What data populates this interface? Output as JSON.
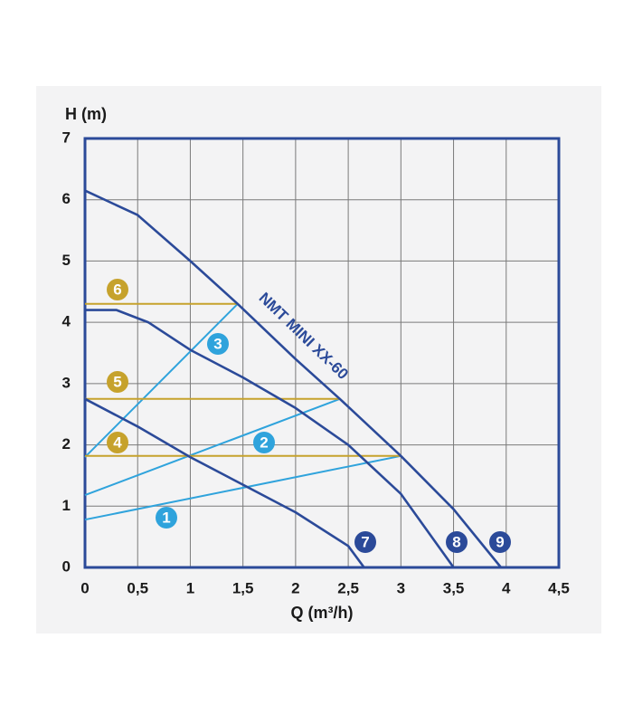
{
  "chart_data": {
    "type": "line",
    "x_label": "Q (m³/h)",
    "y_label": "H (m)",
    "annotation": "NMT MINI XX-60",
    "xlim": [
      0,
      4.5
    ],
    "ylim": [
      0,
      7
    ],
    "xticks": [
      0,
      {
        "value": 0.5,
        "label": "0,5"
      },
      1,
      {
        "value": 1.5,
        "label": "1,5"
      },
      2,
      {
        "value": 2.5,
        "label": "2,5"
      },
      3,
      {
        "value": 3.5,
        "label": "3,5"
      },
      4,
      {
        "value": 4.5,
        "label": "4,5"
      }
    ],
    "yticks": [
      0,
      1,
      2,
      3,
      4,
      5,
      6,
      7
    ],
    "grid": true,
    "series": [
      {
        "name": "1",
        "color": "#2fa3dc",
        "x": [
          0,
          3
        ],
        "values": [
          0.78,
          1.82
        ]
      },
      {
        "name": "2",
        "color": "#2fa3dc",
        "x": [
          0,
          2.42
        ],
        "values": [
          1.18,
          2.75
        ]
      },
      {
        "name": "3",
        "color": "#2fa3dc",
        "x": [
          0,
          1.45
        ],
        "values": [
          1.8,
          4.3
        ]
      },
      {
        "name": "4",
        "color": "#c6a22c",
        "x": [
          0,
          3
        ],
        "values": [
          1.82,
          1.82
        ]
      },
      {
        "name": "5",
        "color": "#c6a22c",
        "x": [
          0,
          2.42
        ],
        "values": [
          2.75,
          2.75
        ]
      },
      {
        "name": "6",
        "color": "#c6a22c",
        "x": [
          0,
          1.45
        ],
        "values": [
          4.3,
          4.3
        ]
      },
      {
        "name": "7",
        "color": "#2b4a99",
        "x": [
          0,
          0.5,
          1,
          1.5,
          2,
          2.5,
          2.65
        ],
        "values": [
          2.75,
          2.3,
          1.8,
          1.35,
          0.9,
          0.35,
          0
        ]
      },
      {
        "name": "8",
        "color": "#2b4a99",
        "x": [
          0,
          0.3,
          0.6,
          1,
          1.5,
          2,
          2.5,
          3,
          3.5
        ],
        "values": [
          4.2,
          4.2,
          4.0,
          3.55,
          3.1,
          2.6,
          2.0,
          1.2,
          0
        ]
      },
      {
        "name": "9",
        "color": "#2b4a99",
        "x": [
          0,
          0.5,
          1,
          1.45,
          2,
          2.42,
          3,
          3.5,
          3.95
        ],
        "values": [
          6.15,
          5.75,
          5.0,
          4.3,
          3.4,
          2.75,
          1.82,
          0.95,
          0
        ]
      }
    ]
  }
}
